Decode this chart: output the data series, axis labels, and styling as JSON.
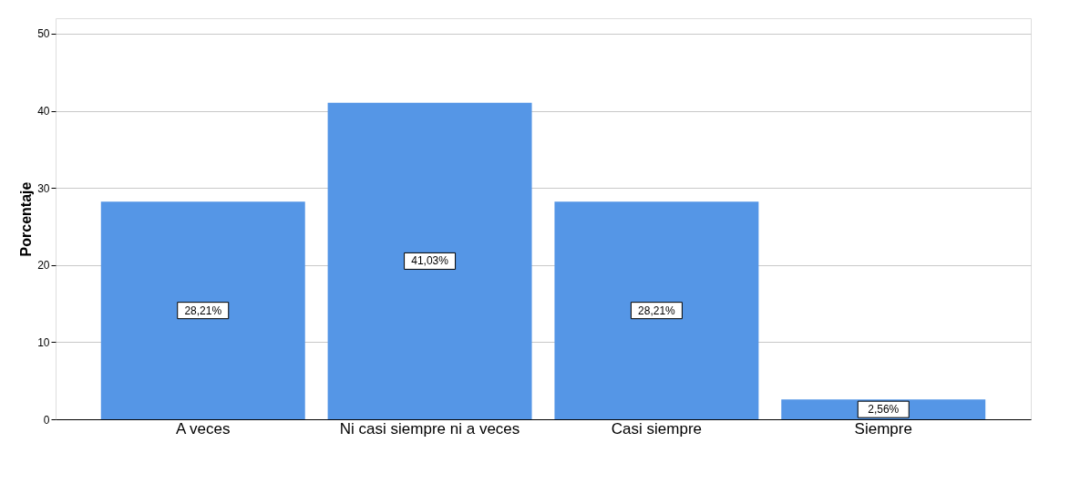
{
  "chart_data": {
    "type": "bar",
    "ylabel": "Porcentaje",
    "categories": [
      "A veces",
      "Ni casi siempre ni a veces",
      "Casi siempre",
      "Siempre"
    ],
    "values": [
      28.21,
      41.03,
      28.21,
      2.56
    ],
    "value_labels": [
      "28,21%",
      "41,03%",
      "28,21%",
      "2,56%"
    ],
    "color": "#5596e6",
    "ylim": [
      0,
      52
    ],
    "yticks": [
      0,
      10,
      20,
      30,
      40,
      50
    ],
    "grid": "y"
  }
}
